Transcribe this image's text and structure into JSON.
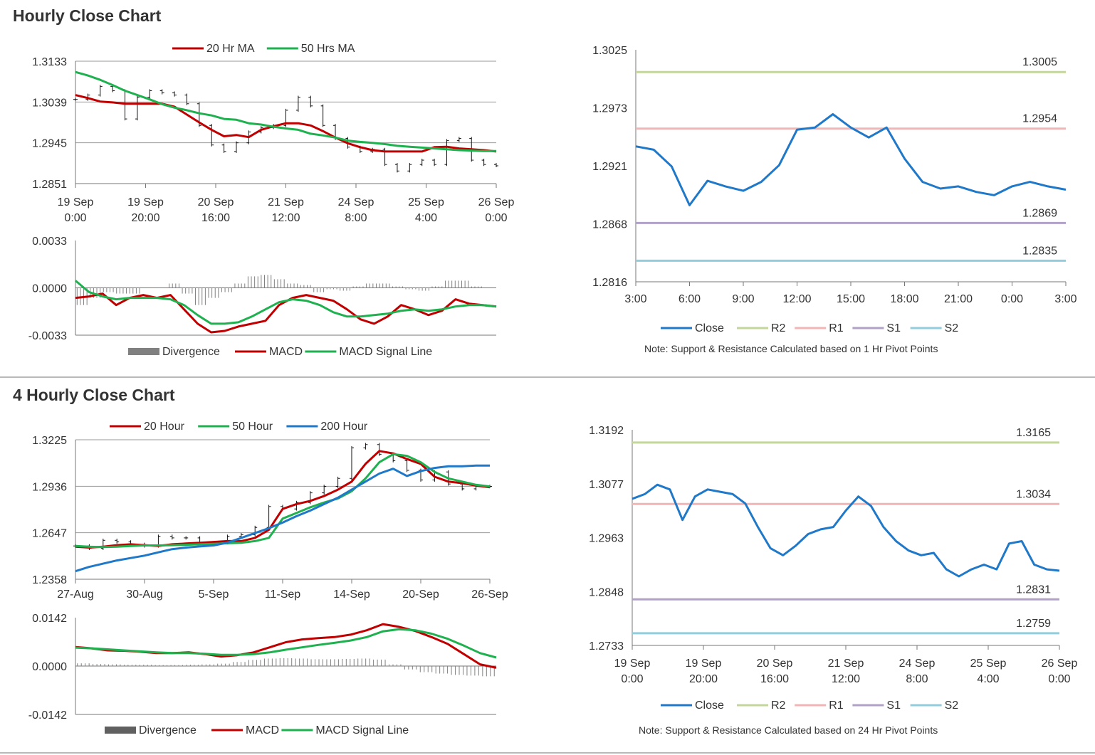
{
  "sections": [
    {
      "title": "Hourly Close Chart"
    },
    {
      "title": "4 Hourly Close Chart"
    }
  ],
  "chart_data": [
    {
      "id": "h_price",
      "type": "line",
      "ylim": [
        1.2851,
        1.3133
      ],
      "y_ticks": [
        "1.3133",
        "1.3039",
        "1.2945",
        "1.2851"
      ],
      "x_ticks": [
        [
          "19 Sep",
          "0:00"
        ],
        [
          "19 Sep",
          "20:00"
        ],
        [
          "20 Sep",
          "16:00"
        ],
        [
          "21 Sep",
          "12:00"
        ],
        [
          "24 Sep",
          "8:00"
        ],
        [
          "25 Sep",
          "4:00"
        ],
        [
          "26 Sep",
          "0:00"
        ]
      ],
      "series": [
        {
          "name": "20 Hr MA",
          "color": "#c00000",
          "values": [
            1.3055,
            1.3048,
            1.304,
            1.3038,
            1.3035,
            1.3035,
            1.3035,
            1.3035,
            1.3028,
            1.301,
            1.2992,
            1.2975,
            1.296,
            1.2963,
            1.2958,
            1.2975,
            1.2983,
            1.299,
            1.299,
            1.2985,
            1.2972,
            1.2957,
            1.2944,
            1.2935,
            1.2928,
            1.2925,
            1.2925,
            1.2925,
            1.2925,
            1.2935,
            1.2936,
            1.2932,
            1.293,
            1.2928,
            1.2925
          ]
        },
        {
          "name": "50 Hrs MA",
          "color": "#1fb14f",
          "values": [
            1.3108,
            1.31,
            1.309,
            1.3078,
            1.3065,
            1.3055,
            1.3045,
            1.3034,
            1.3026,
            1.302,
            1.3013,
            1.3008,
            1.3,
            1.2998,
            1.299,
            1.2987,
            1.2982,
            1.2978,
            1.2975,
            1.2966,
            1.2962,
            1.2957,
            1.295,
            1.2947,
            1.2945,
            1.2942,
            1.2938,
            1.2936,
            1.2934,
            1.2932,
            1.293,
            1.2928,
            1.2927,
            1.2926,
            1.2926
          ]
        }
      ],
      "candle_close": [
        1.3045,
        1.3055,
        1.3075,
        1.3065,
        1.3,
        1.305,
        1.3065,
        1.306,
        1.3055,
        1.3035,
        1.2985,
        1.294,
        1.2925,
        1.2945,
        1.297,
        1.298,
        1.2985,
        1.302,
        1.305,
        1.303,
        1.2985,
        1.2955,
        1.2935,
        1.2925,
        1.293,
        1.2895,
        1.288,
        1.2895,
        1.2905,
        1.2895,
        1.295,
        1.2955,
        1.2905,
        1.2895,
        1.2892
      ]
    },
    {
      "id": "h_macd",
      "type": "line",
      "ylim": [
        -0.0033,
        0.0033
      ],
      "y_ticks": [
        "0.0033",
        "0.0000",
        "-0.0033"
      ],
      "series": [
        {
          "name": "MACD",
          "color": "#c00000",
          "values": [
            -0.0007,
            -0.0006,
            -0.0004,
            -0.0012,
            -0.0007,
            -0.0005,
            -0.0007,
            -0.0005,
            -0.0015,
            -0.0025,
            -0.0031,
            -0.003,
            -0.0027,
            -0.0025,
            -0.0023,
            -0.0012,
            -0.0007,
            -0.0005,
            -0.0007,
            -0.0009,
            -0.0015,
            -0.0022,
            -0.0025,
            -0.002,
            -0.0012,
            -0.0015,
            -0.0019,
            -0.0016,
            -0.0008,
            -0.0011,
            -0.0012,
            -0.0013
          ]
        },
        {
          "name": "MACD Signal Line",
          "color": "#1fb14f",
          "values": [
            0.0005,
            -0.0003,
            -0.0006,
            -0.0008,
            -0.0007,
            -0.0007,
            -0.0007,
            -0.0008,
            -0.0012,
            -0.0019,
            -0.0025,
            -0.0025,
            -0.0024,
            -0.002,
            -0.0015,
            -0.001,
            -0.0008,
            -0.0009,
            -0.0012,
            -0.0017,
            -0.002,
            -0.002,
            -0.0019,
            -0.0018,
            -0.0016,
            -0.0015,
            -0.0016,
            -0.0015,
            -0.0013,
            -0.0012,
            -0.0012,
            -0.0013
          ]
        }
      ],
      "divergence": [
        -0.0012,
        -0.0007,
        -0.0003,
        -0.0004,
        -0.0004,
        0.0,
        0.0,
        0.0003,
        -0.0004,
        -0.0012,
        -0.0007,
        -0.0003,
        0.0003,
        0.0008,
        0.0009,
        0.0006,
        0.0003,
        0.0002,
        -0.0003,
        -0.0001,
        -0.0002,
        0.0001,
        0.0003,
        0.0003,
        0.0001,
        -0.0001,
        -0.0002,
        0.0001,
        0.0005,
        0.0005,
        0.0001,
        0.0
      ]
    },
    {
      "id": "h_pivot",
      "type": "line",
      "ylim": [
        1.2816,
        1.3025
      ],
      "y_ticks": [
        "1.3025",
        "1.2973",
        "1.2921",
        "1.2868",
        "1.2816"
      ],
      "x_ticks": [
        "3:00",
        "6:00",
        "9:00",
        "12:00",
        "15:00",
        "18:00",
        "21:00",
        "0:00",
        "3:00"
      ],
      "series": [
        {
          "name": "Close",
          "color": "#1f78c8",
          "values": [
            1.2938,
            1.2935,
            1.292,
            1.2885,
            1.2907,
            1.2902,
            1.2898,
            1.2906,
            1.2921,
            1.2953,
            1.2955,
            1.2967,
            1.2955,
            1.2946,
            1.2955,
            1.2927,
            1.2906,
            1.29,
            1.2902,
            1.2897,
            1.2894,
            1.2902,
            1.2906,
            1.2902,
            1.2899
          ]
        }
      ],
      "levels": [
        {
          "name": "R2",
          "color": "#c3d69b",
          "value": 1.3005,
          "label": "1.3005"
        },
        {
          "name": "R1",
          "color": "#f2b5b5",
          "value": 1.2954,
          "label": "1.2954"
        },
        {
          "name": "S1",
          "color": "#b1a0c7",
          "value": 1.2869,
          "label": "1.2869"
        },
        {
          "name": "S2",
          "color": "#93cddd",
          "value": 1.2835,
          "label": "1.2835"
        }
      ],
      "note": "Note: Support & Resistance Calculated based on 1 Hr Pivot Points"
    },
    {
      "id": "h4_price",
      "type": "line",
      "ylim": [
        1.2358,
        1.3225
      ],
      "y_ticks": [
        "1.3225",
        "1.2936",
        "1.2647",
        "1.2358"
      ],
      "x_ticks": [
        "27-Aug",
        "30-Aug",
        "5-Sep",
        "11-Sep",
        "14-Sep",
        "20-Sep",
        "26-Sep"
      ],
      "series": [
        {
          "name": "20 Hour",
          "color": "#c00000",
          "values": [
            1.256,
            1.2555,
            1.256,
            1.257,
            1.2575,
            1.257,
            1.2565,
            1.2575,
            1.258,
            1.2585,
            1.259,
            1.2595,
            1.2595,
            1.2615,
            1.2665,
            1.2795,
            1.2825,
            1.2845,
            1.2875,
            1.2915,
            1.2965,
            1.3075,
            1.3155,
            1.314,
            1.3105,
            1.3075,
            1.2995,
            1.2965,
            1.2955,
            1.294,
            1.293
          ]
        },
        {
          "name": "50 Hour",
          "color": "#1fb14f",
          "values": [
            1.2565,
            1.256,
            1.2558,
            1.256,
            1.2565,
            1.2568,
            1.2568,
            1.257,
            1.2572,
            1.2575,
            1.2578,
            1.2582,
            1.2585,
            1.2595,
            1.2615,
            1.2735,
            1.277,
            1.2805,
            1.2835,
            1.286,
            1.2905,
            1.2985,
            1.3085,
            1.3135,
            1.3125,
            1.3085,
            1.3025,
            1.2985,
            1.2965,
            1.2945,
            1.2935
          ]
        },
        {
          "name": "200 Hour",
          "color": "#1f78c8",
          "values": [
            1.2408,
            1.2435,
            1.2455,
            1.2475,
            1.249,
            1.2505,
            1.2525,
            1.2545,
            1.2555,
            1.2562,
            1.2568,
            1.2585,
            1.2615,
            1.2645,
            1.2675,
            1.271,
            1.275,
            1.2785,
            1.2825,
            1.2865,
            1.2915,
            1.2965,
            1.3015,
            1.3045,
            1.3,
            1.303,
            1.305,
            1.306,
            1.306,
            1.3065,
            1.3065
          ]
        }
      ],
      "candle_close": [
        1.2565,
        1.255,
        1.26,
        1.259,
        1.2575,
        1.2565,
        1.2625,
        1.2615,
        1.2615,
        1.2585,
        1.2585,
        1.2625,
        1.2635,
        1.268,
        1.281,
        1.2795,
        1.2835,
        1.2895,
        1.2935,
        1.2985,
        1.3175,
        1.3195,
        1.3135,
        1.3095,
        1.3035,
        1.2975,
        1.3025,
        1.295,
        1.292,
        1.2935,
        1.2935
      ]
    },
    {
      "id": "h4_macd",
      "type": "line",
      "ylim": [
        -0.0142,
        0.0142
      ],
      "y_ticks": [
        "0.0142",
        "0.0000",
        "-0.0142"
      ],
      "series": [
        {
          "name": "MACD",
          "color": "#c00000",
          "values": [
            0.0056,
            0.0052,
            0.0046,
            0.0045,
            0.0042,
            0.0038,
            0.0038,
            0.004,
            0.0035,
            0.0028,
            0.0032,
            0.004,
            0.0055,
            0.007,
            0.0078,
            0.0082,
            0.0085,
            0.0092,
            0.0105,
            0.0123,
            0.0115,
            0.0103,
            0.0085,
            0.0065,
            0.0035,
            0.0005,
            -0.0005
          ]
        },
        {
          "name": "MACD Signal Line",
          "color": "#1fb14f",
          "values": [
            0.0054,
            0.0052,
            0.0049,
            0.0046,
            0.0043,
            0.004,
            0.0038,
            0.0038,
            0.0036,
            0.0033,
            0.0033,
            0.0035,
            0.004,
            0.0048,
            0.0055,
            0.0062,
            0.0068,
            0.0075,
            0.0085,
            0.0102,
            0.0108,
            0.0105,
            0.0095,
            0.008,
            0.006,
            0.0038,
            0.0025
          ]
        }
      ],
      "divergence": [
        0.0008,
        0.0006,
        0.0005,
        0.0004,
        0.0004,
        0.0003,
        0.0003,
        0.0004,
        0.0005,
        0.0007,
        0.0012,
        0.0018,
        0.0022,
        0.0023,
        0.0022,
        0.002,
        0.002,
        0.0021,
        0.0022,
        0.0019,
        0.0005,
        -0.001,
        -0.0018,
        -0.0022,
        -0.0026,
        -0.0028,
        -0.003
      ]
    },
    {
      "id": "h4_pivot",
      "type": "line",
      "ylim": [
        1.2733,
        1.3192
      ],
      "y_ticks": [
        "1.3192",
        "1.3077",
        "1.2963",
        "1.2848",
        "1.2733"
      ],
      "x_ticks": [
        [
          "19 Sep",
          "0:00"
        ],
        [
          "19 Sep",
          "20:00"
        ],
        [
          "20 Sep",
          "16:00"
        ],
        [
          "21 Sep",
          "12:00"
        ],
        [
          "24 Sep",
          "8:00"
        ],
        [
          "25 Sep",
          "4:00"
        ],
        [
          "26 Sep",
          "0:00"
        ]
      ],
      "series": [
        {
          "name": "Close",
          "color": "#1f78c8",
          "values": [
            1.3045,
            1.3055,
            1.3075,
            1.3065,
            1.3,
            1.305,
            1.3065,
            1.306,
            1.3055,
            1.3035,
            1.2985,
            1.294,
            1.2925,
            1.2945,
            1.297,
            1.298,
            1.2985,
            1.302,
            1.305,
            1.303,
            1.2985,
            1.2955,
            1.2935,
            1.2925,
            1.293,
            1.2895,
            1.288,
            1.2895,
            1.2905,
            1.2895,
            1.295,
            1.2955,
            1.2905,
            1.2895,
            1.2892
          ]
        }
      ],
      "levels": [
        {
          "name": "R2",
          "color": "#c3d69b",
          "value": 1.3165,
          "label": "1.3165"
        },
        {
          "name": "R1",
          "color": "#f2b5b5",
          "value": 1.3034,
          "label": "1.3034"
        },
        {
          "name": "S1",
          "color": "#b1a0c7",
          "value": 1.2831,
          "label": "1.2831"
        },
        {
          "name": "S2",
          "color": "#93cddd",
          "value": 1.2759,
          "label": "1.2759"
        }
      ],
      "note": "Note: Support & Resistance Calculated based on 24 Hr Pivot Points"
    }
  ],
  "legends": {
    "h_price": [
      "20 Hr MA",
      "50 Hrs MA"
    ],
    "h_macd": [
      "Divergence",
      "MACD",
      "MACD Signal Line"
    ],
    "h_pivot": [
      "Close",
      "R2",
      "R1",
      "S1",
      "S2"
    ],
    "h4_price": [
      "20 Hour",
      "50 Hour",
      "200 Hour"
    ],
    "h4_macd": [
      "Divergence",
      "MACD",
      "MACD Signal Line"
    ],
    "h4_pivot": [
      "Close",
      "R2",
      "R1",
      "S1",
      "S2"
    ]
  },
  "colors": {
    "ma_red": "#c00000",
    "ma_green": "#1fb14f",
    "ma_blue": "#1f78c8",
    "divergence": "#808080",
    "R2": "#c3d69b",
    "R1": "#f2b5b5",
    "S1": "#b1a0c7",
    "S2": "#93cddd"
  }
}
